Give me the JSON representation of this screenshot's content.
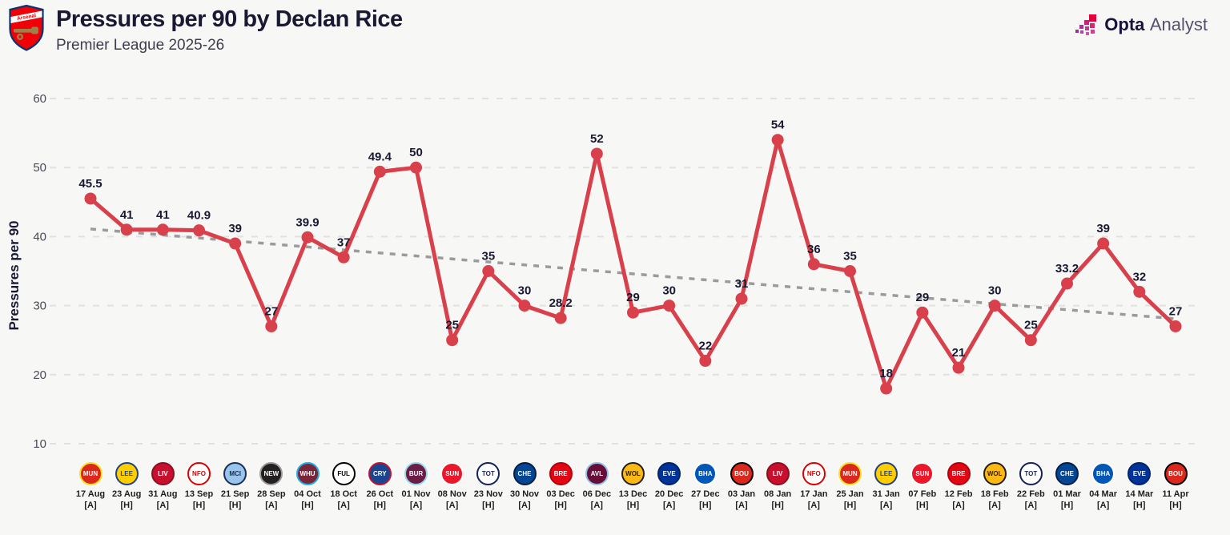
{
  "header": {
    "title": "Pressures per 90 by Declan Rice",
    "subtitle": "Premier League 2025-26",
    "club_badge": "Arsenal"
  },
  "brand": {
    "bold": "Opta",
    "light": "Analyst"
  },
  "colors": {
    "bg": "#f7f7f5",
    "line": "#d8414b",
    "trend": "#9b9b9b",
    "grid": "#e2e1df",
    "label": "#191934"
  },
  "chart_data": {
    "type": "line",
    "title": "Pressures per 90 by Declan Rice",
    "subtitle": "Premier League 2025-26",
    "series_name": "Pressures per 90",
    "ylabel": "Pressures per 90",
    "y_ticks": [
      10,
      20,
      30,
      40,
      50,
      60
    ],
    "ylim": [
      8,
      62
    ],
    "grid": "horizontal-dashed",
    "legend": "none",
    "trend": {
      "style": "dashed",
      "start": 41.1,
      "end": 28.1
    },
    "clubs": {
      "MUN": {
        "name": "Manchester United",
        "bg": "#DA291C",
        "ring": "#FBE122",
        "fg": "#FFFFFF"
      },
      "LEE": {
        "name": "Leeds United",
        "bg": "#FFCD00",
        "ring": "#1D428A",
        "fg": "#1D428A"
      },
      "LIV": {
        "name": "Liverpool",
        "bg": "#C8102E",
        "ring": "#8E0E21",
        "fg": "#FFFFFF"
      },
      "NFO": {
        "name": "Nottingham Forest",
        "bg": "#FFFFFF",
        "ring": "#DD0000",
        "fg": "#DD0000"
      },
      "MCI": {
        "name": "Manchester City",
        "bg": "#98C5E9",
        "ring": "#1C2C5B",
        "fg": "#1C2C5B"
      },
      "NEW": {
        "name": "Newcastle United",
        "bg": "#241F20",
        "ring": "#9B9B9B",
        "fg": "#FFFFFF"
      },
      "WHU": {
        "name": "West Ham United",
        "bg": "#7A263A",
        "ring": "#1BB1E7",
        "fg": "#FFFFFF"
      },
      "FUL": {
        "name": "Fulham",
        "bg": "#FFFFFF",
        "ring": "#000000",
        "fg": "#000000"
      },
      "CRY": {
        "name": "Crystal Palace",
        "bg": "#1B458F",
        "ring": "#C4122E",
        "fg": "#FFFFFF"
      },
      "BUR": {
        "name": "Burnley",
        "bg": "#6C1D45",
        "ring": "#99D6EA",
        "fg": "#FFFFFF"
      },
      "SUN": {
        "name": "Sunderland",
        "bg": "#EB172B",
        "ring": "#FFFFFF",
        "fg": "#FFFFFF"
      },
      "TOT": {
        "name": "Tottenham Hotspur",
        "bg": "#FFFFFF",
        "ring": "#132257",
        "fg": "#132257"
      },
      "CHE": {
        "name": "Chelsea",
        "bg": "#034694",
        "ring": "#021E47",
        "fg": "#FFFFFF"
      },
      "BRE": {
        "name": "Brentford",
        "bg": "#E30613",
        "ring": "#B3000C",
        "fg": "#FFFFFF"
      },
      "AVL": {
        "name": "Aston Villa",
        "bg": "#670E36",
        "ring": "#95BFE5",
        "fg": "#FFFFFF"
      },
      "WOL": {
        "name": "Wolverhampton Wanderers",
        "bg": "#FDB913",
        "ring": "#231F20",
        "fg": "#231F20"
      },
      "EVE": {
        "name": "Everton",
        "bg": "#003399",
        "ring": "#00246B",
        "fg": "#FFFFFF"
      },
      "BHA": {
        "name": "Brighton & Hove Albion",
        "bg": "#0057B8",
        "ring": "#FFFFFF",
        "fg": "#FFFFFF"
      },
      "BOU": {
        "name": "AFC Bournemouth",
        "bg": "#DA291C",
        "ring": "#000000",
        "fg": "#FFFFFF"
      }
    },
    "matches": [
      {
        "date": "17 Aug",
        "venue": "[A]",
        "opp": "MUN",
        "value": 45.5
      },
      {
        "date": "23 Aug",
        "venue": "[H]",
        "opp": "LEE",
        "value": 41
      },
      {
        "date": "31 Aug",
        "venue": "[A]",
        "opp": "LIV",
        "value": 41
      },
      {
        "date": "13 Sep",
        "venue": "[H]",
        "opp": "NFO",
        "value": 40.9
      },
      {
        "date": "21 Sep",
        "venue": "[H]",
        "opp": "MCI",
        "value": 39
      },
      {
        "date": "28 Sep",
        "venue": "[A]",
        "opp": "NEW",
        "value": 27
      },
      {
        "date": "04 Oct",
        "venue": "[H]",
        "opp": "WHU",
        "value": 39.9
      },
      {
        "date": "18 Oct",
        "venue": "[A]",
        "opp": "FUL",
        "value": 37
      },
      {
        "date": "26 Oct",
        "venue": "[H]",
        "opp": "CRY",
        "value": 49.4
      },
      {
        "date": "01 Nov",
        "venue": "[A]",
        "opp": "BUR",
        "value": 50
      },
      {
        "date": "08 Nov",
        "venue": "[A]",
        "opp": "SUN",
        "value": 25
      },
      {
        "date": "23 Nov",
        "venue": "[H]",
        "opp": "TOT",
        "value": 35
      },
      {
        "date": "30 Nov",
        "venue": "[A]",
        "opp": "CHE",
        "value": 30
      },
      {
        "date": "03 Dec",
        "venue": "[H]",
        "opp": "BRE",
        "value": 28.2
      },
      {
        "date": "06 Dec",
        "venue": "[A]",
        "opp": "AVL",
        "value": 52
      },
      {
        "date": "13 Dec",
        "venue": "[H]",
        "opp": "WOL",
        "value": 29
      },
      {
        "date": "20 Dec",
        "venue": "[A]",
        "opp": "EVE",
        "value": 30
      },
      {
        "date": "27 Dec",
        "venue": "[H]",
        "opp": "BHA",
        "value": 22
      },
      {
        "date": "03 Jan",
        "venue": "[A]",
        "opp": "BOU",
        "value": 31
      },
      {
        "date": "08 Jan",
        "venue": "[H]",
        "opp": "LIV",
        "value": 54
      },
      {
        "date": "17 Jan",
        "venue": "[A]",
        "opp": "NFO",
        "value": 36
      },
      {
        "date": "25 Jan",
        "venue": "[H]",
        "opp": "MUN",
        "value": 35
      },
      {
        "date": "31 Jan",
        "venue": "[A]",
        "opp": "LEE",
        "value": 18
      },
      {
        "date": "07 Feb",
        "venue": "[H]",
        "opp": "SUN",
        "value": 29
      },
      {
        "date": "12 Feb",
        "venue": "[A]",
        "opp": "BRE",
        "value": 21
      },
      {
        "date": "18 Feb",
        "venue": "[A]",
        "opp": "WOL",
        "value": 30
      },
      {
        "date": "22 Feb",
        "venue": "[A]",
        "opp": "TOT",
        "value": 25
      },
      {
        "date": "01 Mar",
        "venue": "[H]",
        "opp": "CHE",
        "value": 33.2
      },
      {
        "date": "04 Mar",
        "venue": "[A]",
        "opp": "BHA",
        "value": 39
      },
      {
        "date": "14 Mar",
        "venue": "[H]",
        "opp": "EVE",
        "value": 32
      },
      {
        "date": "11 Apr",
        "venue": "[H]",
        "opp": "BOU",
        "value": 27
      }
    ]
  }
}
